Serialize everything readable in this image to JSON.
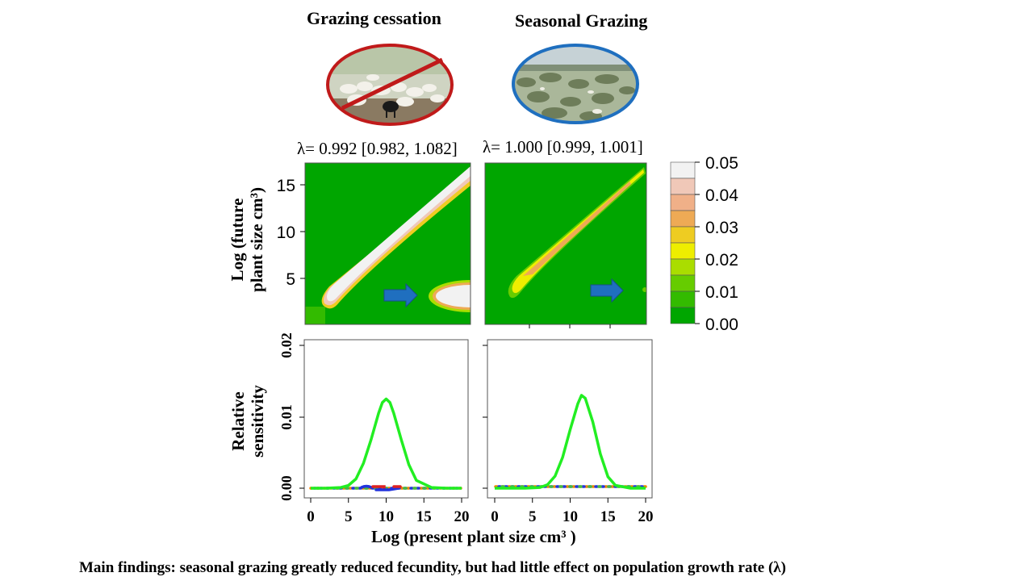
{
  "treatments": [
    {
      "title": "Grazing cessation",
      "photo": "goats-crossed-out",
      "lambda_label": "λ= 0.992 [0.982, 1.082]"
    },
    {
      "title": "Seasonal Grazing",
      "photo": "grazing-shrubland",
      "lambda_label": "λ= 1.000 [0.999, 1.001]"
    }
  ],
  "colors": {
    "prohibit_ring": "#c01a1a",
    "seasonal_ring": "#1f6fbf",
    "arrow": "#1f6fbf",
    "sensitivity_line": "#22ee22"
  },
  "footer": "Main findings: seasonal grazing greatly reduced fecundity, but had little effect on population growth rate (λ)",
  "chart_data": [
    {
      "type": "heatmap",
      "panel": "Grazing cessation",
      "ylabel_line1": "Log (future",
      "ylabel_line2": "plant size cm³)",
      "yticks": [
        5,
        10,
        15
      ],
      "x_range": [
        0,
        20
      ],
      "y_range": [
        0,
        17.5
      ],
      "ridge": {
        "from": [
          0.5,
          1.5
        ],
        "to": [
          19.5,
          17
        ],
        "peak_value": 0.05
      },
      "blob": {
        "center": [
          19,
          3
        ],
        "peak_value": 0.05
      },
      "background_value": 0.0,
      "arrow": true
    },
    {
      "type": "heatmap",
      "panel": "Seasonal Grazing",
      "yticks": [
        5,
        10,
        15
      ],
      "x_range": [
        0,
        20
      ],
      "y_range": [
        0,
        17.5
      ],
      "ridge": {
        "from": [
          2.5,
          4
        ],
        "to": [
          19.5,
          16.8
        ],
        "peak_value": 0.025
      },
      "background_value": 0.0,
      "arrow": true
    },
    {
      "type": "legend",
      "labels": [
        "0.05",
        "0.04",
        "0.03",
        "0.02",
        "0.01",
        "0.00"
      ],
      "colors": [
        "#f2f2f2",
        "#f0c8b8",
        "#f0b088",
        "#eeaa55",
        "#eecc22",
        "#eeee00",
        "#aadd00",
        "#66cc00",
        "#33bb00",
        "#00a600"
      ]
    },
    {
      "type": "line",
      "panel": "Grazing cessation",
      "ylabel_line1": "Relative",
      "ylabel_line2": "sensitivity",
      "yticks": [
        "0.00",
        "0.01",
        "0.02"
      ],
      "xticks": [
        "0",
        "5",
        "10",
        "15",
        "20"
      ],
      "xlim": [
        -1,
        21
      ],
      "ylim": [
        -0.0005,
        0.021
      ],
      "series": [
        {
          "x": [
            0,
            2,
            4,
            5,
            6,
            7,
            8,
            9,
            9.5,
            10,
            10.5,
            11,
            12,
            13,
            14,
            16,
            18,
            20
          ],
          "y": [
            0,
            0,
            0.0001,
            0.0004,
            0.0013,
            0.0035,
            0.0068,
            0.0105,
            0.012,
            0.0125,
            0.012,
            0.0105,
            0.0068,
            0.0033,
            0.0011,
            0.0001,
            0,
            0
          ]
        }
      ],
      "dotted_baseline": true
    },
    {
      "type": "line",
      "panel": "Seasonal Grazing",
      "yticks": [],
      "xticks": [
        "0",
        "5",
        "10",
        "15",
        "20"
      ],
      "xlim": [
        -1,
        21
      ],
      "ylim": [
        -0.0005,
        0.021
      ],
      "series": [
        {
          "x": [
            0,
            2,
            4,
            6,
            7,
            8,
            9,
            10,
            11,
            11.5,
            12,
            13,
            14,
            15,
            16,
            18,
            20
          ],
          "y": [
            0,
            0,
            0,
            0.0001,
            0.0005,
            0.0017,
            0.0043,
            0.0082,
            0.0118,
            0.013,
            0.0126,
            0.0093,
            0.0048,
            0.0016,
            0.0004,
            0,
            0
          ]
        }
      ],
      "dotted_baseline": true
    }
  ],
  "xlabel": "Log (present plant size  cm³ )"
}
